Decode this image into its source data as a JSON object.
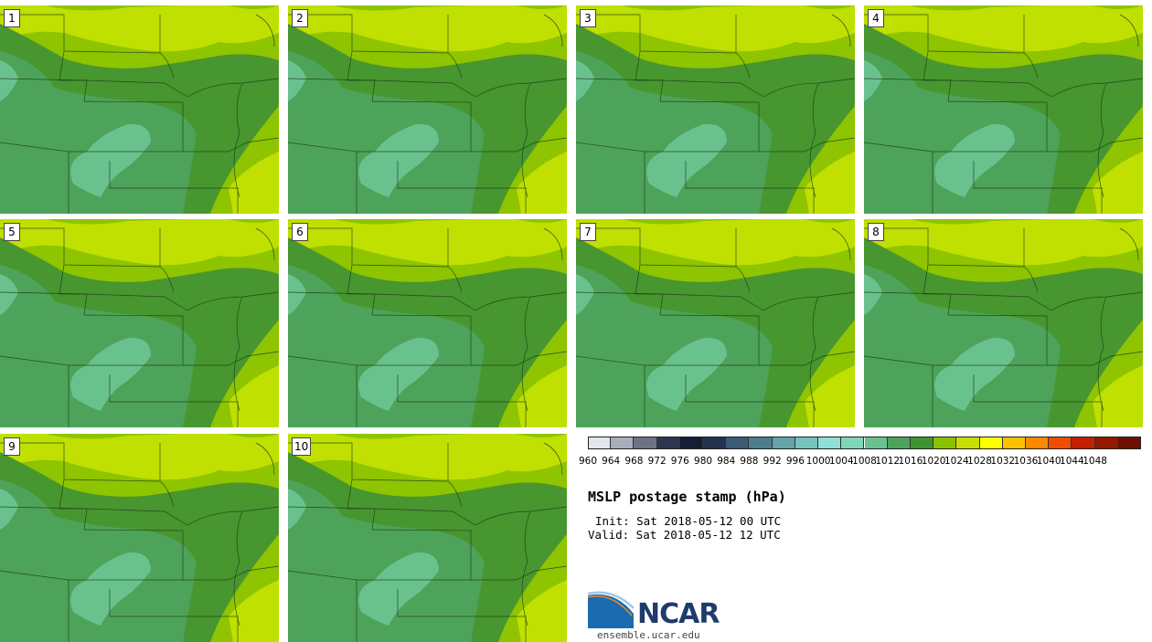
{
  "members": [
    "1",
    "2",
    "3",
    "4",
    "5",
    "6",
    "7",
    "8",
    "9",
    "10"
  ],
  "colorbar": {
    "levels": [
      "960",
      "964",
      "968",
      "972",
      "976",
      "980",
      "984",
      "988",
      "992",
      "996",
      "1000",
      "1004",
      "1008",
      "1012",
      "1016",
      "1020",
      "1024",
      "1028",
      "1032",
      "1036",
      "1040",
      "1044",
      "1048"
    ],
    "colors": [
      "#e2e6ea",
      "#a9aebb",
      "#6d7286",
      "#2d3650",
      "#141e34",
      "#24344f",
      "#3a5a76",
      "#4c7c8d",
      "#65a3a8",
      "#76c2bd",
      "#8ee0d4",
      "#7fd6b8",
      "#69c28e",
      "#4ea35a",
      "#3f942f",
      "#8cc100",
      "#c7df00",
      "#ffff00",
      "#ffc000",
      "#ff8800",
      "#f04c00",
      "#c42000",
      "#941800",
      "#6e1000"
    ]
  },
  "map_colors": {
    "lightest": "#bfe000",
    "light": "#8ec400",
    "mid": "#48962f",
    "band2": "#4ea35a",
    "band3": "#69c28e"
  },
  "text": {
    "title": "MSLP postage stamp (hPa)",
    "init": "Init: Sat 2018-05-12 00 UTC",
    "valid": "Valid: Sat 2018-05-12 12 UTC",
    "logo": "NCAR",
    "website": "ensemble.ucar.edu"
  }
}
